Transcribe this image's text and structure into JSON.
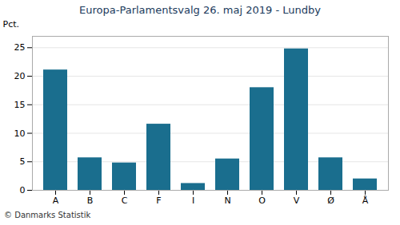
{
  "chart_data": {
    "type": "bar",
    "title": "Europa-Parlamentsvalg 26. maj 2019 - Lundby",
    "caption": "© Danmarks Statistik",
    "ylabel": "Pct.",
    "categories": [
      "A",
      "B",
      "C",
      "F",
      "I",
      "N",
      "O",
      "V",
      "Ø",
      "Å"
    ],
    "values": [
      21.1,
      5.7,
      4.8,
      11.6,
      1.2,
      5.5,
      18.0,
      24.8,
      5.7,
      2.0
    ],
    "color": "#1a6e8e",
    "ylim": [
      0,
      27
    ],
    "yticks": [
      0,
      5,
      10,
      15,
      20,
      25
    ],
    "grid": true
  }
}
